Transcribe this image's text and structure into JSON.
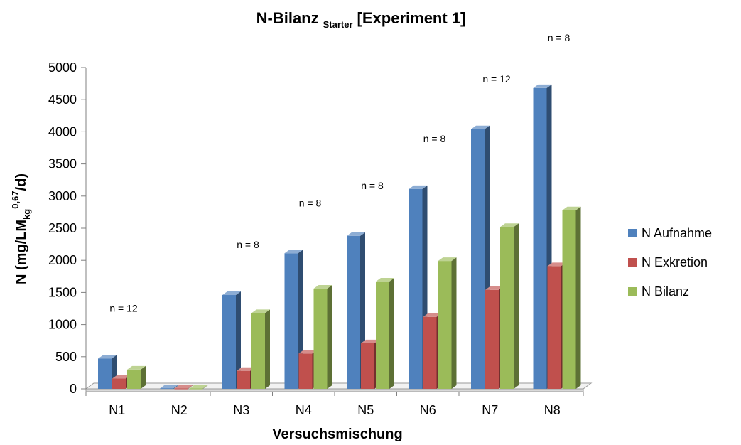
{
  "chart_data": {
    "type": "bar",
    "title": {
      "main": "N-Bilanz",
      "subscript": "Starter",
      "suffix": "[Experiment 1]"
    },
    "xlabel": "Versuchsmischung",
    "ylabel": {
      "prefix": "N (mg/LM",
      "subscript": "kg",
      "superscript": "0,67",
      "suffix": "/d)"
    },
    "categories": [
      "N1",
      "N2",
      "N3",
      "N4",
      "N5",
      "N6",
      "N7",
      "N8"
    ],
    "ylim": [
      0,
      5000
    ],
    "yticks": [
      "0",
      "500",
      "1000",
      "1500",
      "2000",
      "2500",
      "3000",
      "3500",
      "4000",
      "4500",
      "5000"
    ],
    "grid": false,
    "legend_position": "right",
    "series": [
      {
        "name": "N Aufnahme",
        "color": "#4F81BD",
        "values": [
          470,
          10,
          1460,
          2110,
          2380,
          3110,
          4040,
          4680
        ]
      },
      {
        "name": "N Exkretion",
        "color": "#C0504D",
        "values": [
          160,
          5,
          280,
          550,
          710,
          1120,
          1540,
          1910
        ]
      },
      {
        "name": "N Bilanz",
        "color": "#9BBB59",
        "values": [
          300,
          5,
          1180,
          1560,
          1670,
          1990,
          2520,
          2780
        ]
      }
    ],
    "annotations": [
      "n = 12",
      "",
      "n = 8",
      "n = 8",
      "n = 8",
      "n = 8",
      "n = 12",
      "n = 8"
    ]
  }
}
